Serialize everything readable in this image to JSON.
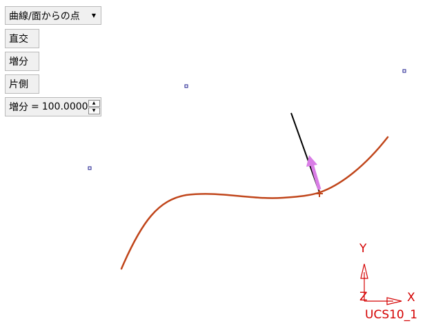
{
  "toolbar": {
    "mode_select": {
      "selected": "曲線/面からの点"
    },
    "orthogonal_label": "直交",
    "increment_label": "増分",
    "one_side_label": "片側",
    "increment_field": {
      "label": "増分",
      "equals": "=",
      "value": "100.0000"
    }
  },
  "viewport": {
    "curve_color": "#c0451a",
    "normal_line_color": "#000000",
    "direction_arrow_color": "#d97de6",
    "control_point_color": "#1a1a8c",
    "triad": {
      "color": "#d40000",
      "x_label": "X",
      "y_label": "Y",
      "z_label": "Z",
      "name": "UCS10_1"
    }
  }
}
